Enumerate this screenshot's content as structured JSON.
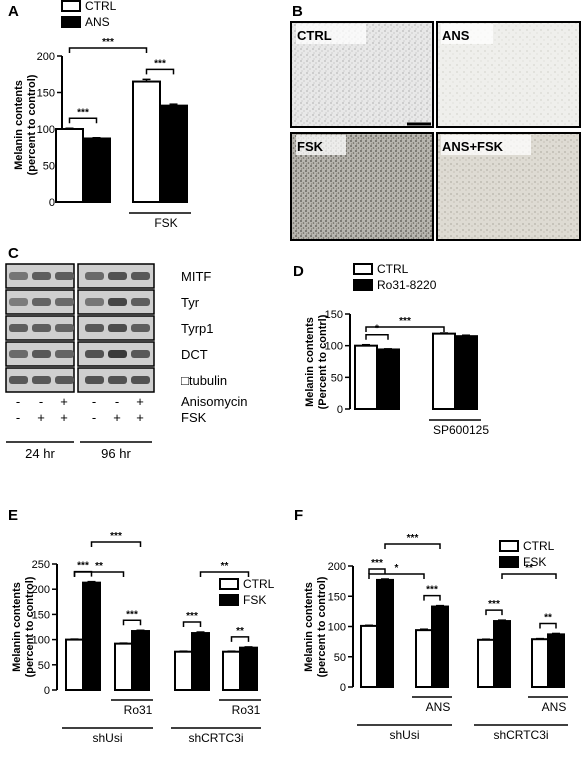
{
  "panels": {
    "A": {
      "label": "A"
    },
    "B": {
      "label": "B"
    },
    "C": {
      "label": "C"
    },
    "D": {
      "label": "D"
    },
    "E": {
      "label": "E"
    },
    "F": {
      "label": "F"
    }
  },
  "colors": {
    "ctrl": "#ffffff",
    "treated": "#000000",
    "stroke": "#000000"
  },
  "chart_data": [
    {
      "id": "A",
      "type": "bar",
      "ylabel_lines": [
        "Melanin contents",
        "(percent to control)"
      ],
      "ylim": [
        0,
        200
      ],
      "yticks": [
        0,
        50,
        100,
        150,
        200
      ],
      "legend": [
        "CTRL",
        "ANS"
      ],
      "categories": [
        "",
        "FSK"
      ],
      "series": [
        {
          "name": "CTRL",
          "values": [
            100,
            165
          ],
          "errors": [
            1,
            3
          ]
        },
        {
          "name": "ANS",
          "values": [
            87,
            132
          ],
          "errors": [
            1,
            2
          ]
        }
      ],
      "group_labels": [
        {
          "text": "FSK",
          "groups": [
            1,
            1
          ]
        }
      ],
      "significance": [
        {
          "text": "***",
          "from": [
            0,
            0
          ],
          "to": [
            0,
            1
          ]
        },
        {
          "text": "***",
          "from": [
            1,
            0
          ],
          "to": [
            1,
            1
          ]
        },
        {
          "text": "***",
          "from": [
            0,
            0
          ],
          "to": [
            1,
            0
          ]
        }
      ]
    },
    {
      "id": "D",
      "type": "bar",
      "ylabel_lines": [
        "Melanin contents",
        "(Percent to contrl)"
      ],
      "ylim": [
        0,
        150
      ],
      "yticks": [
        0,
        50,
        100,
        150
      ],
      "legend": [
        "CTRL",
        "Ro31-8220"
      ],
      "categories": [
        "",
        "SP600125"
      ],
      "series": [
        {
          "name": "CTRL",
          "values": [
            100,
            119
          ],
          "errors": [
            1.5,
            1
          ]
        },
        {
          "name": "Ro31-8220",
          "values": [
            94,
            115
          ],
          "errors": [
            1,
            1.5
          ]
        }
      ],
      "group_labels": [
        {
          "text": "SP600125",
          "groups": [
            1,
            1
          ]
        }
      ],
      "significance": [
        {
          "text": "*",
          "from": [
            0,
            0
          ],
          "to": [
            0,
            1
          ]
        },
        {
          "text": "***",
          "from": [
            0,
            0
          ],
          "to": [
            1,
            0
          ]
        }
      ]
    },
    {
      "id": "E",
      "type": "bar",
      "ylabel_lines": [
        "Melanin contents",
        "(percent to control)"
      ],
      "ylim": [
        0,
        250
      ],
      "yticks": [
        0,
        50,
        100,
        150,
        200,
        250
      ],
      "legend": [
        "CTRL",
        "FSK"
      ],
      "categories": [
        "",
        "Ro31",
        "",
        "Ro31"
      ],
      "series": [
        {
          "name": "CTRL",
          "values": [
            100,
            92,
            76,
            76
          ],
          "errors": [
            1,
            1,
            1,
            1
          ]
        },
        {
          "name": "FSK",
          "values": [
            213,
            117,
            113,
            84
          ],
          "errors": [
            2,
            1.5,
            2,
            1.5
          ]
        }
      ],
      "group_labels": [
        {
          "text": "Ro31",
          "groups": [
            1,
            1
          ]
        },
        {
          "text": "Ro31",
          "groups": [
            3,
            3
          ]
        },
        {
          "text": "shUsi",
          "groups": [
            0,
            1
          ]
        },
        {
          "text": "shCRTC3i",
          "groups": [
            2,
            3
          ]
        }
      ],
      "significance": [
        {
          "text": "***",
          "from": [
            0,
            0
          ],
          "to": [
            0,
            1
          ],
          "level": 0
        },
        {
          "text": "***",
          "from": [
            1,
            0
          ],
          "to": [
            1,
            1
          ],
          "level": 0
        },
        {
          "text": "***",
          "from": [
            2,
            0
          ],
          "to": [
            2,
            1
          ],
          "level": 0
        },
        {
          "text": "**",
          "from": [
            3,
            0
          ],
          "to": [
            3,
            1
          ],
          "level": 0
        },
        {
          "text": "**",
          "from": [
            0,
            0
          ],
          "to": [
            1,
            0
          ],
          "level": 1
        },
        {
          "text": "***",
          "from": [
            0,
            1
          ],
          "to": [
            1,
            1
          ],
          "level": 2
        },
        {
          "text": "**",
          "from": [
            2,
            1
          ],
          "to": [
            3,
            1
          ],
          "level": 1
        }
      ]
    },
    {
      "id": "F",
      "type": "bar",
      "ylabel_lines": [
        "Melanin contents",
        "(percent to control)"
      ],
      "ylim": [
        0,
        200
      ],
      "yticks": [
        0,
        50,
        100,
        150,
        200
      ],
      "legend": [
        "CTRL",
        "FSK"
      ],
      "categories": [
        "",
        "ANS",
        "",
        "ANS"
      ],
      "series": [
        {
          "name": "CTRL",
          "values": [
            101,
            94,
            78,
            79
          ],
          "errors": [
            1,
            1.5,
            1,
            1
          ]
        },
        {
          "name": "FSK",
          "values": [
            177,
            133,
            109,
            87
          ],
          "errors": [
            1.5,
            1.5,
            1.5,
            1.5
          ]
        }
      ],
      "group_labels": [
        {
          "text": "ANS",
          "groups": [
            1,
            1
          ]
        },
        {
          "text": "ANS",
          "groups": [
            3,
            3
          ]
        },
        {
          "text": "shUsi",
          "groups": [
            0,
            1
          ]
        },
        {
          "text": "shCRTC3i",
          "groups": [
            2,
            3
          ]
        }
      ],
      "significance": [
        {
          "text": "***",
          "from": [
            0,
            0
          ],
          "to": [
            0,
            1
          ],
          "level": 0
        },
        {
          "text": "***",
          "from": [
            1,
            0
          ],
          "to": [
            1,
            1
          ],
          "level": 0
        },
        {
          "text": "***",
          "from": [
            2,
            0
          ],
          "to": [
            2,
            1
          ],
          "level": 0
        },
        {
          "text": "**",
          "from": [
            3,
            0
          ],
          "to": [
            3,
            1
          ],
          "level": 0
        },
        {
          "text": "*",
          "from": [
            0,
            0
          ],
          "to": [
            1,
            0
          ],
          "level": 1
        },
        {
          "text": "***",
          "from": [
            0,
            1
          ],
          "to": [
            1,
            1
          ],
          "level": 2
        },
        {
          "text": "**",
          "from": [
            2,
            1
          ],
          "to": [
            3,
            1
          ],
          "level": 1
        }
      ]
    }
  ],
  "micrographs": [
    "CTRL",
    "ANS",
    "FSK",
    "ANS+FSK"
  ],
  "blot": {
    "proteins": [
      "MITF",
      "Tyr",
      "Tyrp1",
      "DCT",
      "□tubulin"
    ],
    "rows": [
      {
        "label": "Anisomycin",
        "signs": [
          "-",
          "-",
          "+",
          "-",
          "-",
          "+"
        ]
      },
      {
        "label": "FSK",
        "signs": [
          "-",
          "+",
          "+",
          "-",
          "+",
          "+"
        ]
      }
    ],
    "times": [
      "24 hr",
      "96 hr"
    ]
  }
}
